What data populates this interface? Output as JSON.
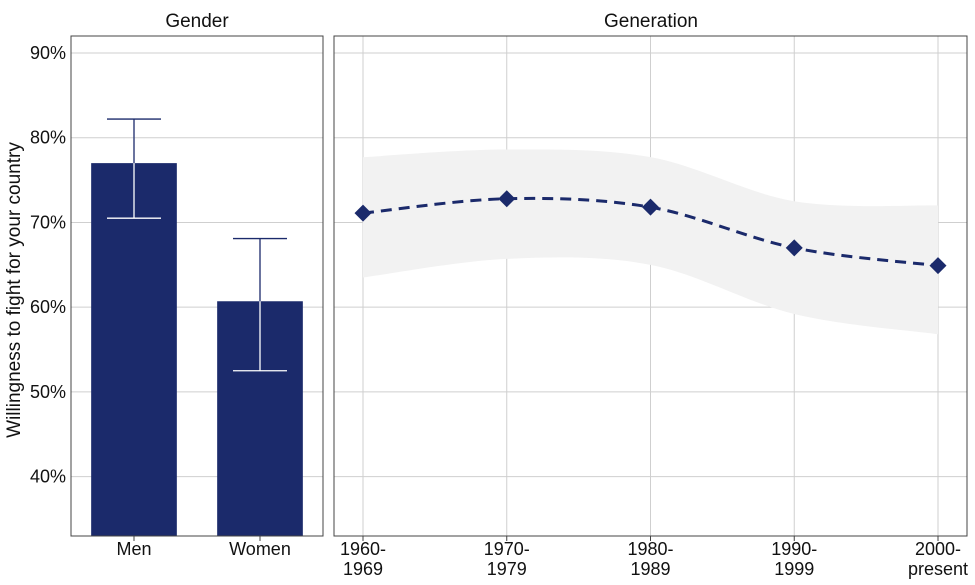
{
  "chart_data": {
    "y_axis_label": "Willingness to fight for your country",
    "y_lim": [
      33,
      92
    ],
    "y_ticks": [
      40,
      50,
      60,
      70,
      80,
      90
    ],
    "y_tick_format": "%",
    "color_accent": "#1b2a6b",
    "color_ribbon": "#f2f2f2",
    "color_grid": "#cfcfcf",
    "panels": [
      {
        "strip_title": "Gender",
        "type": "bar",
        "categories": [
          "Men",
          "Women"
        ],
        "values": [
          77.0,
          60.7
        ],
        "error_low": [
          70.5,
          52.5
        ],
        "error_high": [
          82.2,
          68.1
        ]
      },
      {
        "strip_title": "Generation",
        "type": "line",
        "line_style": "dashed",
        "marker": "diamond",
        "categories": [
          [
            "1960-",
            "1969"
          ],
          [
            "1970-",
            "1979"
          ],
          [
            "1980-",
            "1989"
          ],
          [
            "1990-",
            "1999"
          ],
          [
            "2000-",
            "present"
          ]
        ],
        "values": [
          71.1,
          72.8,
          71.8,
          67.0,
          64.9
        ],
        "band_low": [
          63.5,
          65.7,
          65.0,
          59.2,
          56.8
        ],
        "band_high": [
          77.7,
          78.6,
          77.7,
          72.5,
          72.0
        ]
      }
    ]
  }
}
